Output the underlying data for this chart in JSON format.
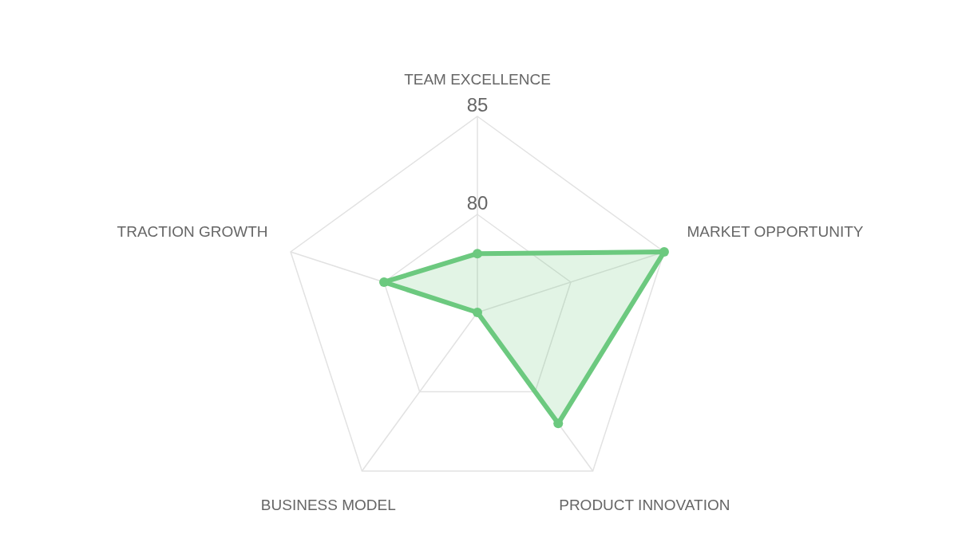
{
  "chart_data": {
    "type": "radar",
    "categories": [
      "TEAM EXCELLENCE",
      "MARKET OPPORTUNITY",
      "PRODUCT INNOVATION",
      "BUSINESS MODEL",
      "TRACTION GROWTH"
    ],
    "series": [
      {
        "color": "#6cc97f",
        "values": [
          78,
          85,
          82,
          75,
          80
        ]
      }
    ],
    "ylim": [
      75,
      85
    ],
    "yticks": [
      80,
      85
    ],
    "grid": true,
    "marker": "circle"
  }
}
